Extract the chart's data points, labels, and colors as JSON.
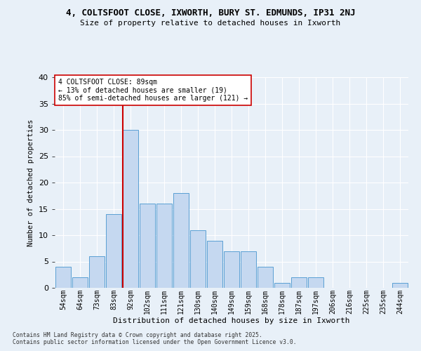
{
  "title1": "4, COLTSFOOT CLOSE, IXWORTH, BURY ST. EDMUNDS, IP31 2NJ",
  "title2": "Size of property relative to detached houses in Ixworth",
  "xlabel": "Distribution of detached houses by size in Ixworth",
  "ylabel": "Number of detached properties",
  "categories": [
    "54sqm",
    "64sqm",
    "73sqm",
    "83sqm",
    "92sqm",
    "102sqm",
    "111sqm",
    "121sqm",
    "130sqm",
    "140sqm",
    "149sqm",
    "159sqm",
    "168sqm",
    "178sqm",
    "187sqm",
    "197sqm",
    "206sqm",
    "216sqm",
    "225sqm",
    "235sqm",
    "244sqm"
  ],
  "values": [
    4,
    2,
    6,
    14,
    30,
    16,
    16,
    18,
    11,
    9,
    7,
    7,
    4,
    1,
    2,
    2,
    0,
    0,
    0,
    0,
    1
  ],
  "bar_color": "#c5d8f0",
  "bar_edge_color": "#5a9fd4",
  "vline_index": 4,
  "vline_color": "#cc0000",
  "ylim": [
    0,
    40
  ],
  "yticks": [
    0,
    5,
    10,
    15,
    20,
    25,
    30,
    35,
    40
  ],
  "annotation_title": "4 COLTSFOOT CLOSE: 89sqm",
  "annotation_line1": "← 13% of detached houses are smaller (19)",
  "annotation_line2": "85% of semi-detached houses are larger (121) →",
  "bg_color": "#e8f0f8",
  "footnote1": "Contains HM Land Registry data © Crown copyright and database right 2025.",
  "footnote2": "Contains public sector information licensed under the Open Government Licence v3.0."
}
